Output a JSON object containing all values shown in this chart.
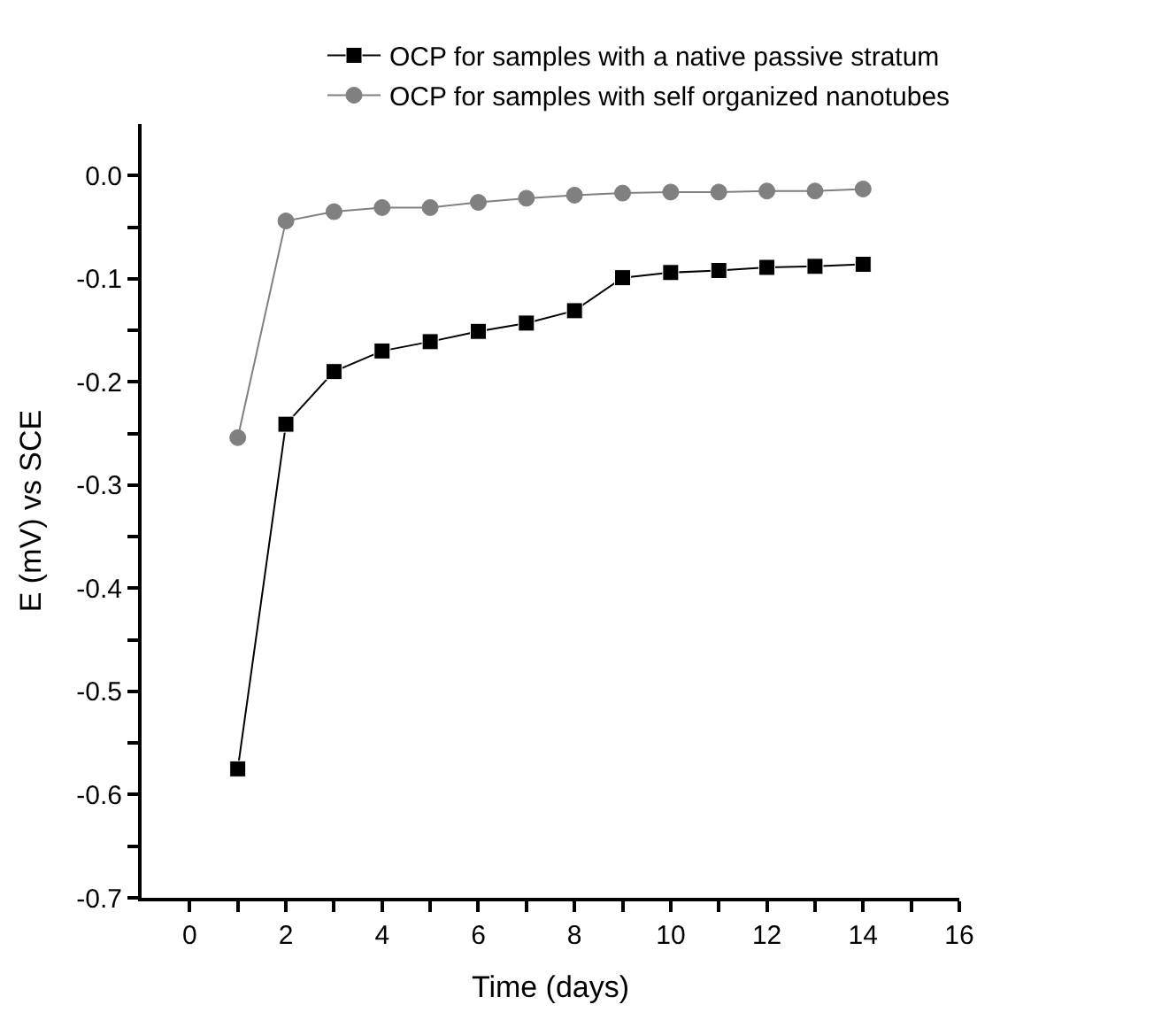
{
  "chart_data": {
    "type": "line",
    "xlabel": "Time (days)",
    "ylabel": "E (mV) vs SCE",
    "x": [
      1,
      2,
      3,
      4,
      5,
      6,
      7,
      8,
      9,
      10,
      11,
      12,
      13,
      14
    ],
    "series": [
      {
        "name": "OCP for samples with a native passive stratum",
        "color": "#000000",
        "marker": "square",
        "values": [
          -0.575,
          -0.241,
          -0.19,
          -0.17,
          -0.161,
          -0.151,
          -0.143,
          -0.131,
          -0.099,
          -0.094,
          -0.092,
          -0.089,
          -0.088,
          -0.086
        ]
      },
      {
        "name": "OCP for samples with self organized nanotubes",
        "color": "#808080",
        "marker": "circle",
        "values": [
          -0.254,
          -0.044,
          -0.035,
          -0.031,
          -0.031,
          -0.026,
          -0.022,
          -0.019,
          -0.017,
          -0.016,
          -0.016,
          -0.015,
          -0.015,
          -0.013
        ]
      }
    ],
    "xlim": [
      -1,
      16
    ],
    "xticks": [
      0,
      {
        "value": 1,
        "label": null
      },
      2,
      {
        "value": 3,
        "label": null
      },
      4,
      {
        "value": 5,
        "label": null
      },
      6,
      {
        "value": 7,
        "label": null
      },
      8,
      {
        "value": 9,
        "label": null
      },
      10,
      {
        "value": 11,
        "label": null
      },
      12,
      {
        "value": 13,
        "label": null
      },
      14,
      {
        "value": 15,
        "label": null
      },
      16
    ],
    "ylim": [
      -0.7,
      0.05
    ],
    "yticks": [
      {
        "value": -0.7,
        "label": "-0.7"
      },
      {
        "value": -0.65,
        "label": null
      },
      {
        "value": -0.6,
        "label": "-0.6"
      },
      {
        "value": -0.55,
        "label": null
      },
      {
        "value": -0.5,
        "label": "-0.5"
      },
      {
        "value": -0.45,
        "label": null
      },
      {
        "value": -0.4,
        "label": "-0.4"
      },
      {
        "value": -0.35,
        "label": null
      },
      {
        "value": -0.3,
        "label": "-0.3"
      },
      {
        "value": -0.25,
        "label": null
      },
      {
        "value": -0.2,
        "label": "-0.2"
      },
      {
        "value": -0.15,
        "label": null
      },
      {
        "value": -0.1,
        "label": "-0.1"
      },
      {
        "value": -0.05,
        "label": null
      },
      {
        "value": 0,
        "label": "0.0"
      }
    ],
    "legend": "top right",
    "line_style": "solid"
  }
}
